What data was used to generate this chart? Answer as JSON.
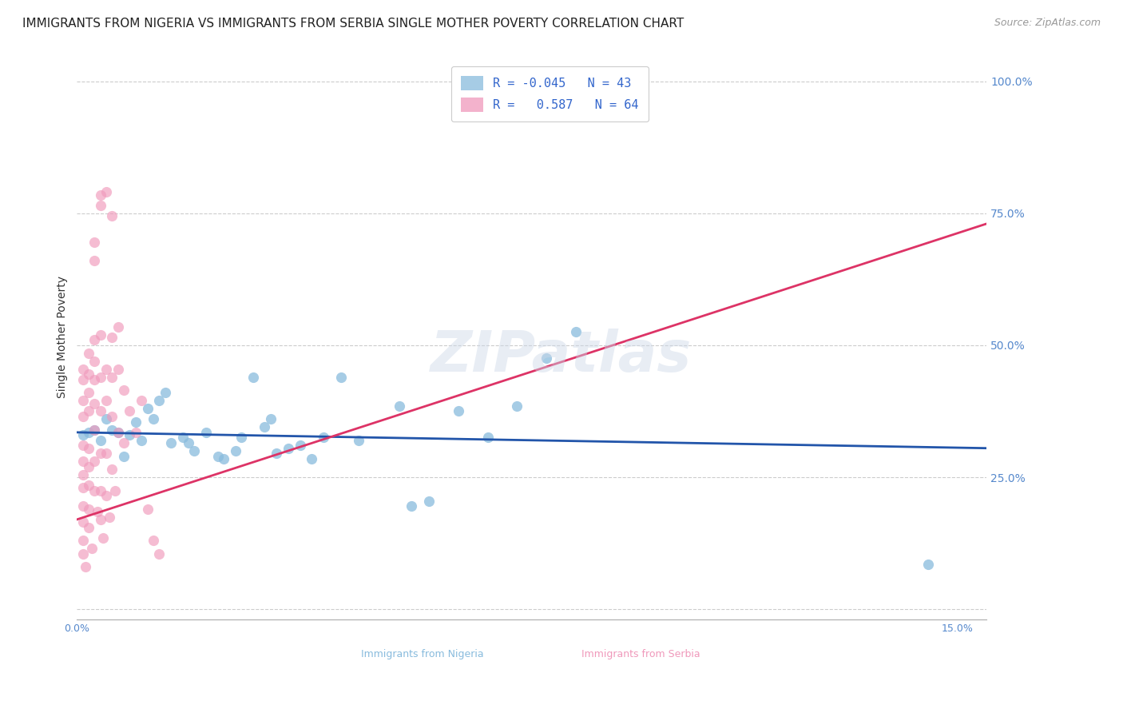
{
  "title": "IMMIGRANTS FROM NIGERIA VS IMMIGRANTS FROM SERBIA SINGLE MOTHER POVERTY CORRELATION CHART",
  "source": "Source: ZipAtlas.com",
  "ylabel": "Single Mother Poverty",
  "xlim": [
    0.0,
    0.155
  ],
  "ylim": [
    -0.02,
    1.05
  ],
  "nigeria_color": "#88bbdd",
  "serbia_color": "#f099bb",
  "nigeria_line_color": "#2255aa",
  "serbia_line_color": "#dd3366",
  "nigeria_line": [
    0.0,
    0.335,
    0.155,
    0.305
  ],
  "serbia_line": [
    0.0,
    0.17,
    0.155,
    0.73
  ],
  "nigeria_scatter": [
    [
      0.001,
      0.33
    ],
    [
      0.002,
      0.335
    ],
    [
      0.003,
      0.34
    ],
    [
      0.004,
      0.32
    ],
    [
      0.005,
      0.36
    ],
    [
      0.006,
      0.34
    ],
    [
      0.007,
      0.335
    ],
    [
      0.008,
      0.29
    ],
    [
      0.009,
      0.33
    ],
    [
      0.01,
      0.355
    ],
    [
      0.011,
      0.32
    ],
    [
      0.012,
      0.38
    ],
    [
      0.013,
      0.36
    ],
    [
      0.014,
      0.395
    ],
    [
      0.015,
      0.41
    ],
    [
      0.016,
      0.315
    ],
    [
      0.018,
      0.325
    ],
    [
      0.019,
      0.315
    ],
    [
      0.02,
      0.3
    ],
    [
      0.022,
      0.335
    ],
    [
      0.024,
      0.29
    ],
    [
      0.025,
      0.285
    ],
    [
      0.027,
      0.3
    ],
    [
      0.028,
      0.325
    ],
    [
      0.03,
      0.44
    ],
    [
      0.032,
      0.345
    ],
    [
      0.033,
      0.36
    ],
    [
      0.034,
      0.295
    ],
    [
      0.036,
      0.305
    ],
    [
      0.038,
      0.31
    ],
    [
      0.04,
      0.285
    ],
    [
      0.042,
      0.325
    ],
    [
      0.045,
      0.44
    ],
    [
      0.048,
      0.32
    ],
    [
      0.055,
      0.385
    ],
    [
      0.057,
      0.195
    ],
    [
      0.06,
      0.205
    ],
    [
      0.065,
      0.375
    ],
    [
      0.07,
      0.325
    ],
    [
      0.075,
      0.385
    ],
    [
      0.08,
      0.475
    ],
    [
      0.085,
      0.525
    ],
    [
      0.145,
      0.085
    ]
  ],
  "serbia_scatter": [
    [
      0.001,
      0.455
    ],
    [
      0.001,
      0.435
    ],
    [
      0.001,
      0.395
    ],
    [
      0.001,
      0.365
    ],
    [
      0.001,
      0.31
    ],
    [
      0.001,
      0.28
    ],
    [
      0.001,
      0.255
    ],
    [
      0.001,
      0.23
    ],
    [
      0.001,
      0.195
    ],
    [
      0.001,
      0.165
    ],
    [
      0.001,
      0.13
    ],
    [
      0.001,
      0.105
    ],
    [
      0.0015,
      0.08
    ],
    [
      0.002,
      0.485
    ],
    [
      0.002,
      0.445
    ],
    [
      0.002,
      0.41
    ],
    [
      0.002,
      0.375
    ],
    [
      0.002,
      0.305
    ],
    [
      0.002,
      0.27
    ],
    [
      0.002,
      0.235
    ],
    [
      0.002,
      0.19
    ],
    [
      0.002,
      0.155
    ],
    [
      0.0025,
      0.115
    ],
    [
      0.003,
      0.695
    ],
    [
      0.003,
      0.66
    ],
    [
      0.003,
      0.51
    ],
    [
      0.003,
      0.47
    ],
    [
      0.003,
      0.435
    ],
    [
      0.003,
      0.39
    ],
    [
      0.003,
      0.34
    ],
    [
      0.003,
      0.28
    ],
    [
      0.003,
      0.225
    ],
    [
      0.0035,
      0.185
    ],
    [
      0.004,
      0.785
    ],
    [
      0.004,
      0.765
    ],
    [
      0.004,
      0.52
    ],
    [
      0.004,
      0.44
    ],
    [
      0.004,
      0.375
    ],
    [
      0.004,
      0.295
    ],
    [
      0.004,
      0.225
    ],
    [
      0.004,
      0.17
    ],
    [
      0.0045,
      0.135
    ],
    [
      0.005,
      0.79
    ],
    [
      0.005,
      0.455
    ],
    [
      0.005,
      0.395
    ],
    [
      0.005,
      0.295
    ],
    [
      0.005,
      0.215
    ],
    [
      0.0055,
      0.175
    ],
    [
      0.006,
      0.745
    ],
    [
      0.006,
      0.515
    ],
    [
      0.006,
      0.44
    ],
    [
      0.006,
      0.365
    ],
    [
      0.006,
      0.265
    ],
    [
      0.0065,
      0.225
    ],
    [
      0.007,
      0.535
    ],
    [
      0.007,
      0.455
    ],
    [
      0.007,
      0.335
    ],
    [
      0.008,
      0.415
    ],
    [
      0.008,
      0.315
    ],
    [
      0.009,
      0.375
    ],
    [
      0.01,
      0.335
    ],
    [
      0.011,
      0.395
    ],
    [
      0.012,
      0.19
    ],
    [
      0.013,
      0.13
    ],
    [
      0.014,
      0.105
    ]
  ],
  "background_color": "#ffffff",
  "grid_color": "#cccccc",
  "title_fontsize": 11,
  "source_fontsize": 9,
  "axis_label_fontsize": 10,
  "tick_fontsize": 9,
  "legend_fontsize": 11
}
